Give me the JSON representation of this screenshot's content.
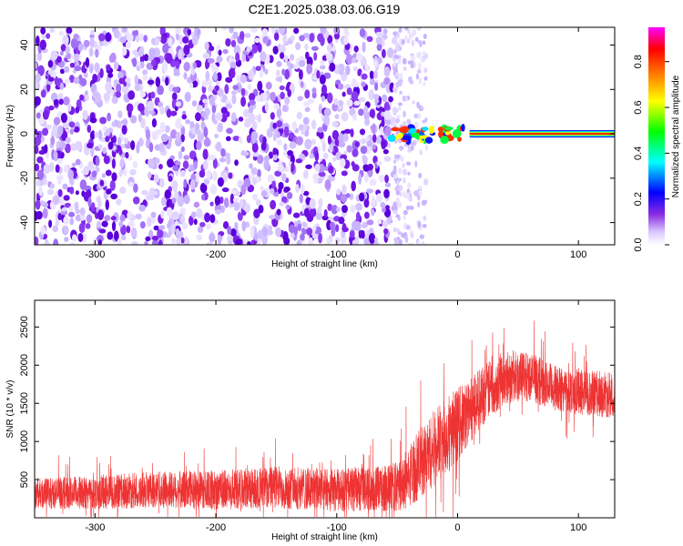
{
  "title": "C2E1.2025.038.03.06.G19",
  "chart_data": [
    {
      "type": "heatmap",
      "xlabel": "Height of straight line (km)",
      "ylabel": "Frequency (Hz)",
      "xlim": [
        -350,
        130
      ],
      "ylim": [
        -50,
        48
      ],
      "xticks": [
        -300,
        -200,
        -100,
        0,
        100
      ],
      "yticks": [
        -40,
        -20,
        0,
        20,
        40
      ],
      "colorbar": {
        "label": "Normalized spectral amplitude",
        "range": [
          0,
          0.95
        ],
        "ticks": [
          0.0,
          0.2,
          0.4,
          0.6,
          0.8
        ],
        "colors": [
          "#ffffff",
          "#d8c8ff",
          "#8a2be2",
          "#0000ff",
          "#00ffff",
          "#00ff00",
          "#ffff00",
          "#ff8000",
          "#ff0000",
          "#ff00ff"
        ]
      },
      "features": {
        "noise_region_x": [
          -350,
          -52
        ],
        "scattered_region_x": [
          -52,
          -25
        ],
        "signal_band_x": [
          -55,
          130
        ],
        "signal_band_y": [
          -1,
          1
        ]
      }
    },
    {
      "type": "line",
      "xlabel": "Height of straight line (km)",
      "ylabel": "SNR (10 * v/v)",
      "xlim": [
        -350,
        130
      ],
      "ylim": [
        0,
        2850
      ],
      "xticks": [
        -300,
        -200,
        -100,
        0,
        100
      ],
      "yticks": [
        500,
        1000,
        1500,
        2000,
        2500
      ],
      "color": "#ee3333",
      "envelope": {
        "x": [
          -350,
          -300,
          -250,
          -200,
          -150,
          -100,
          -60,
          -45,
          -35,
          -20,
          -5,
          5,
          20,
          40,
          60,
          80,
          100,
          130
        ],
        "mean": [
          320,
          330,
          370,
          360,
          400,
          360,
          380,
          430,
          650,
          900,
          1150,
          1300,
          1600,
          1850,
          1850,
          1700,
          1650,
          1600
        ],
        "amp": [
          200,
          220,
          240,
          260,
          280,
          280,
          300,
          350,
          450,
          500,
          520,
          450,
          400,
          350,
          320,
          300,
          300,
          300
        ]
      }
    }
  ]
}
